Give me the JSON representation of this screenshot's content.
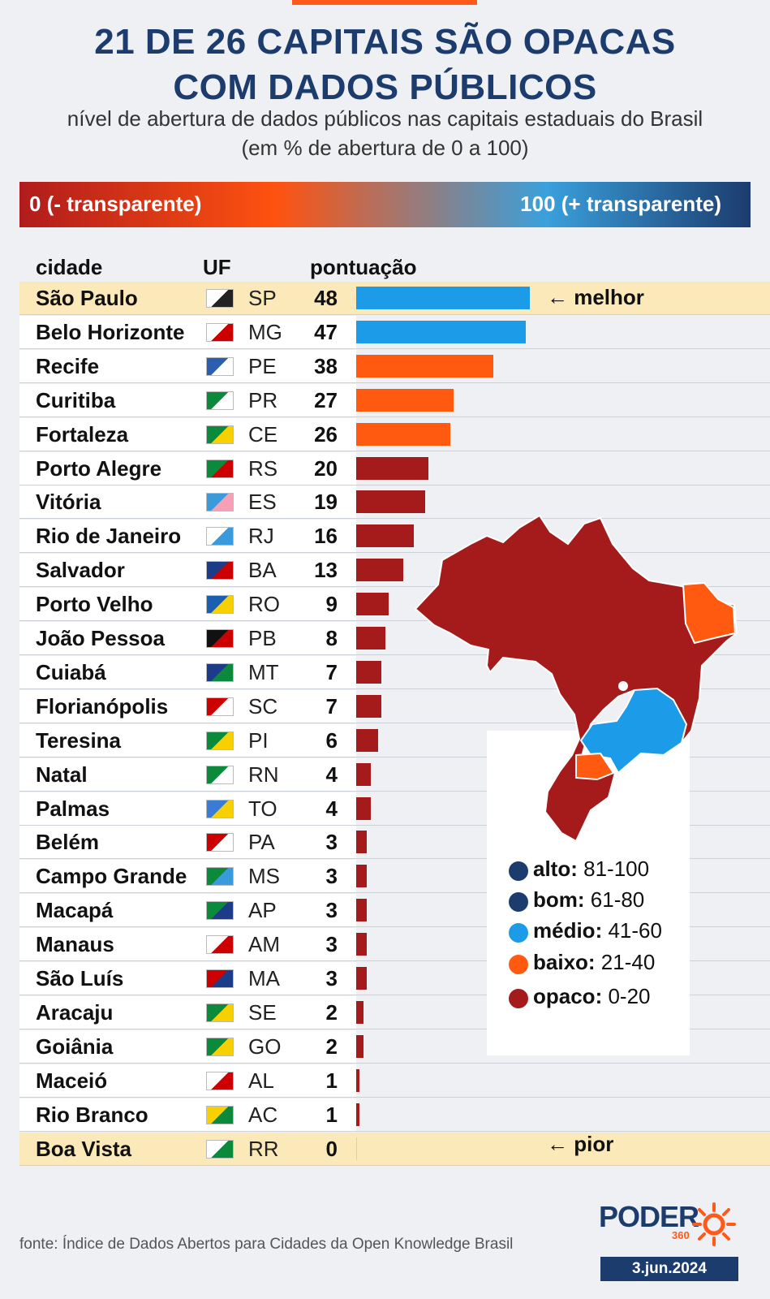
{
  "title": "21 DE 26 CAPITAIS SÃO OPACAS COM DADOS PÚBLICOS",
  "title_line1": "21 DE 26 CAPITAIS SÃO OPACAS",
  "title_line2": "COM DADOS PÚBLICOS",
  "subtitle_line1": "nível de abertura de dados públicos nas capitais estaduais do Brasil",
  "subtitle_line2": "(em % de abertura de 0 a 100)",
  "scale": {
    "left": "0 (- transparente)",
    "right": "100 (+ transparente)"
  },
  "headers": {
    "city": "cidade",
    "uf": "UF",
    "score": "pontuação"
  },
  "notes": {
    "best": "← melhor",
    "worst": "← pior"
  },
  "colors": {
    "opaco": "#a51b1b",
    "baixo": "#ff5a0f",
    "medio": "#1c9be8",
    "bom": "#1c3c6e",
    "alto": "#1c3c6e"
  },
  "legend": [
    {
      "label": "alto:",
      "range": "81-100",
      "color": "#1c3c6e"
    },
    {
      "label": "bom:",
      "range": "61-80",
      "color": "#1c3c6e"
    },
    {
      "label": "médio:",
      "range": "41-60",
      "color": "#1c9be8"
    },
    {
      "label": "baixo:",
      "range": "21-40",
      "color": "#ff5a0f"
    },
    {
      "label": "opaco:",
      "range": "0-20",
      "color": "#a51b1b"
    }
  ],
  "chart_data": {
    "type": "bar",
    "orientation": "horizontal",
    "xlim": [
      0,
      100
    ],
    "categories": [
      "São Paulo",
      "Belo Horizonte",
      "Recife",
      "Curitiba",
      "Fortaleza",
      "Porto Alegre",
      "Vitória",
      "Rio de Janeiro",
      "Salvador",
      "Porto Velho",
      "João Pessoa",
      "Cuiabá",
      "Florianópolis",
      "Teresina",
      "Natal",
      "Palmas",
      "Belém",
      "Campo Grande",
      "Macapá",
      "Manaus",
      "São Luís",
      "Aracaju",
      "Goiânia",
      "Maceió",
      "Rio Branco",
      "Boa Vista"
    ],
    "uf": [
      "SP",
      "MG",
      "PE",
      "PR",
      "CE",
      "RS",
      "ES",
      "RJ",
      "BA",
      "RO",
      "PB",
      "MT",
      "SC",
      "PI",
      "RN",
      "TO",
      "PA",
      "MS",
      "AP",
      "AM",
      "MA",
      "SE",
      "GO",
      "AL",
      "AC",
      "RR"
    ],
    "values": [
      48,
      47,
      38,
      27,
      26,
      20,
      19,
      16,
      13,
      9,
      8,
      7,
      7,
      6,
      4,
      4,
      3,
      3,
      3,
      3,
      3,
      2,
      2,
      1,
      1,
      0
    ]
  },
  "source": "fonte: Índice de Dados Abertos para Cidades da Open Knowledge Brasil",
  "brand": {
    "name": "PODER",
    "sub": "360"
  },
  "date": "3.jun.2024"
}
